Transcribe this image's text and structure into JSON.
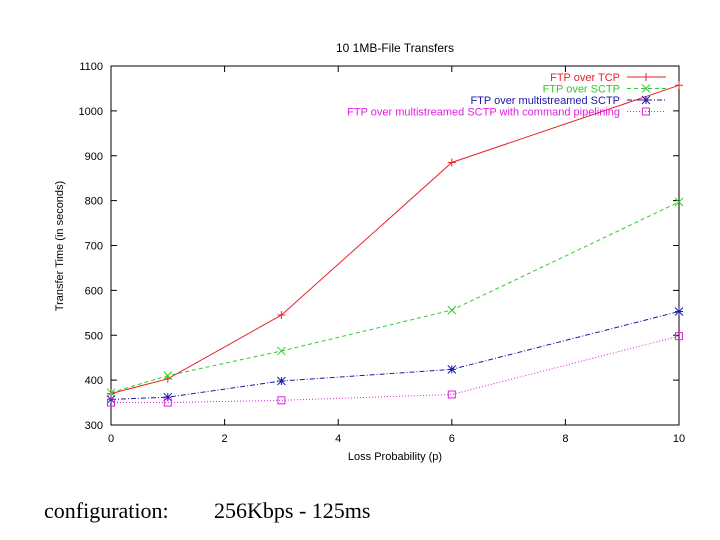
{
  "chart_data": {
    "type": "line",
    "title": "10 1MB-File Transfers",
    "xlabel": "Loss Probability (p)",
    "ylabel": "Transfer Time (in seconds)",
    "xlim": [
      0,
      10
    ],
    "ylim": [
      300,
      1100
    ],
    "xticks": [
      0,
      2,
      4,
      6,
      8,
      10
    ],
    "yticks": [
      300,
      400,
      500,
      600,
      700,
      800,
      900,
      1000,
      1100
    ],
    "grid": false,
    "legend_position": "top-right",
    "x": [
      0,
      1,
      3,
      6,
      10
    ],
    "series": [
      {
        "name": "FTP over TCP",
        "color": "#e8212a",
        "marker": "plus",
        "dash": "solid",
        "values": [
          370,
          403,
          545,
          885,
          1057
        ]
      },
      {
        "name": "FTP over SCTP",
        "color": "#2ecc2e",
        "marker": "x",
        "dash": "dashed",
        "values": [
          372,
          410,
          465,
          556,
          797
        ]
      },
      {
        "name": "FTP over multistreamed SCTP",
        "color": "#1a1aa8",
        "marker": "star",
        "dash": "dashdot",
        "values": [
          357,
          362,
          398,
          424,
          553
        ]
      },
      {
        "name": "FTP over multistreamed SCTP with command pipelining",
        "color": "#e020e0",
        "marker": "square",
        "dash": "dotted",
        "values": [
          350,
          350,
          355,
          368,
          498
        ]
      }
    ]
  },
  "caption": {
    "left": "configuration:",
    "right": "256Kbps - 125ms"
  }
}
